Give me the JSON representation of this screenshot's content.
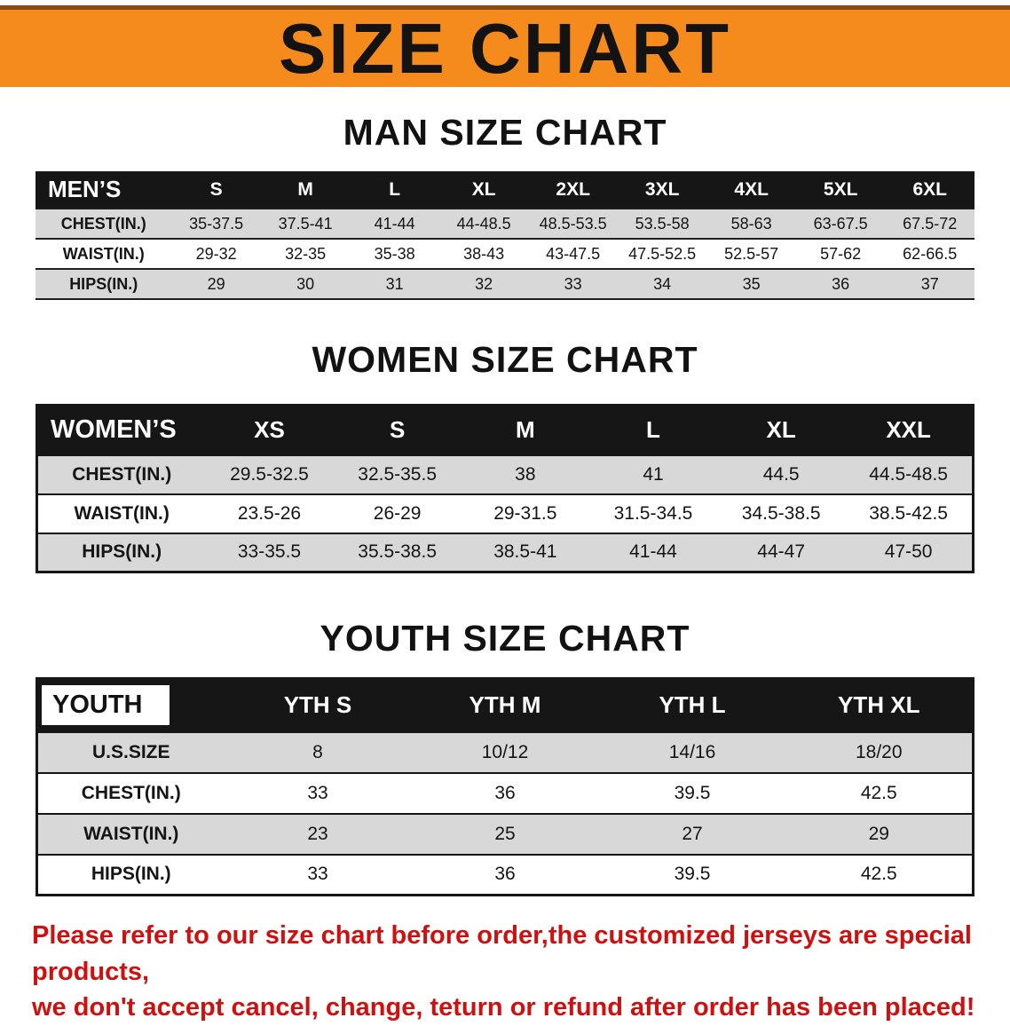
{
  "banner": {
    "title": "SIZE CHART",
    "bg_color": "#f68b1d",
    "top_line_color": "#8a4a10",
    "text_color": "#131313"
  },
  "sections": [
    {
      "heading": "MAN SIZE CHART",
      "table": {
        "header_label": "MEN’S",
        "columns": [
          "S",
          "M",
          "L",
          "XL",
          "2XL",
          "3XL",
          "4XL",
          "5XL",
          "6XL"
        ],
        "rows": [
          {
            "label": "CHEST(IN.)",
            "values": [
              "35-37.5",
              "37.5-41",
              "41-44",
              "44-48.5",
              "48.5-53.5",
              "53.5-58",
              "58-63",
              "63-67.5",
              "67.5-72"
            ]
          },
          {
            "label": "WAIST(IN.)",
            "values": [
              "29-32",
              "32-35",
              "35-38",
              "38-43",
              "43-47.5",
              "47.5-52.5",
              "52.5-57",
              "57-62",
              "62-66.5"
            ]
          },
          {
            "label": "HIPS(IN.)",
            "values": [
              "29",
              "30",
              "31",
              "32",
              "33",
              "34",
              "35",
              "36",
              "37"
            ]
          }
        ]
      }
    },
    {
      "heading": "WOMEN SIZE CHART",
      "table": {
        "header_label": "WOMEN’S",
        "columns": [
          "XS",
          "S",
          "M",
          "L",
          "XL",
          "XXL"
        ],
        "rows": [
          {
            "label": "CHEST(IN.)",
            "values": [
              "29.5-32.5",
              "32.5-35.5",
              "38",
              "41",
              "44.5",
              "44.5-48.5"
            ]
          },
          {
            "label": "WAIST(IN.)",
            "values": [
              "23.5-26",
              "26-29",
              "29-31.5",
              "31.5-34.5",
              "34.5-38.5",
              "38.5-42.5"
            ]
          },
          {
            "label": "HIPS(IN.)",
            "values": [
              "33-35.5",
              "35.5-38.5",
              "38.5-41",
              "41-44",
              "44-47",
              "47-50"
            ]
          }
        ]
      }
    },
    {
      "heading": "YOUTH SIZE CHART",
      "table": {
        "header_label": "YOUTH",
        "columns": [
          "YTH S",
          "YTH M",
          "YTH L",
          "YTH XL"
        ],
        "rows": [
          {
            "label": "U.S.SIZE",
            "values": [
              "8",
              "10/12",
              "14/16",
              "18/20"
            ]
          },
          {
            "label": "CHEST(IN.)",
            "values": [
              "33",
              "36",
              "39.5",
              "42.5"
            ]
          },
          {
            "label": "WAIST(IN.)",
            "values": [
              "23",
              "25",
              "27",
              "29"
            ]
          },
          {
            "label": "HIPS(IN.)",
            "values": [
              "33",
              "36",
              "39.5",
              "42.5"
            ]
          }
        ]
      }
    }
  ],
  "footer": {
    "text_color": "#cf1010",
    "line1": "Please refer to our size chart before order,the customized jerseys are special products,",
    "line2": "we don't accept cancel, change, teturn or refund after order has been placed!"
  }
}
